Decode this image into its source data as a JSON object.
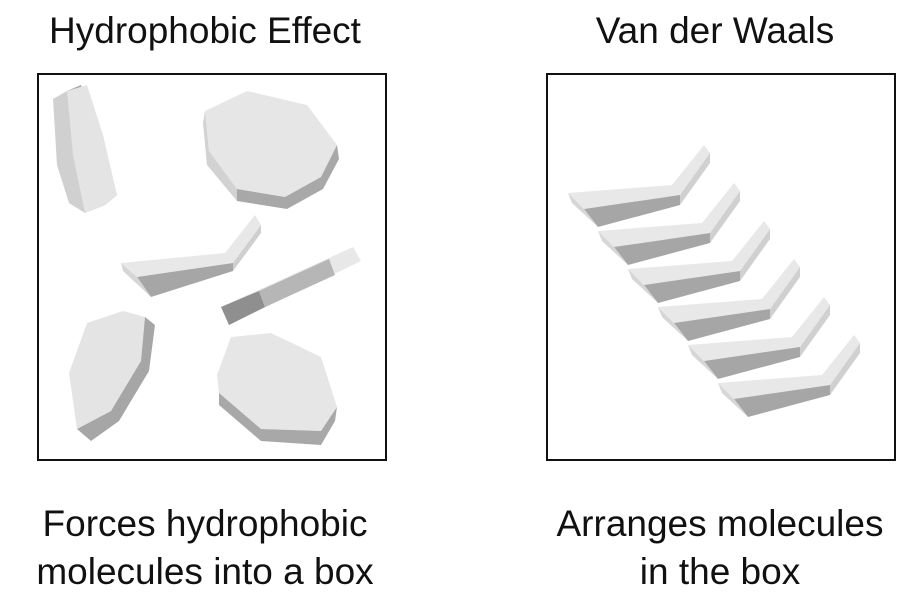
{
  "panels": [
    {
      "title": "Hydrophobic Effect",
      "caption_lines": [
        "Forces hydrophobic",
        "molecules into a box"
      ]
    },
    {
      "title": "Van der Waals",
      "caption_lines": [
        "Arranges molecules",
        "in the box"
      ]
    }
  ],
  "colors": {
    "molecule_top": "#e6e6e6",
    "molecule_side_light": "#d4d4d4",
    "molecule_side_dark": "#a3a3a3",
    "molecule_edge_dark": "#8a8a8a",
    "border": "#111111"
  }
}
